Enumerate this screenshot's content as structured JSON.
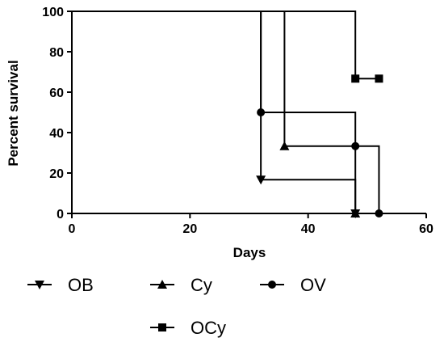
{
  "chart_data": {
    "type": "line",
    "step": true,
    "xlabel": "Days",
    "ylabel": "Percent survival",
    "xlim": [
      0,
      60
    ],
    "ylim": [
      0,
      100
    ],
    "x_ticks": [
      0,
      20,
      40,
      60
    ],
    "y_ticks": [
      0,
      20,
      40,
      60,
      80,
      100
    ],
    "x_tick_labels": [
      "0",
      "20",
      "40",
      "60"
    ],
    "y_tick_labels": [
      "0",
      "20",
      "40",
      "60",
      "80",
      "100"
    ],
    "grid": false,
    "legend_position": "bottom",
    "series": [
      {
        "name": "OB",
        "marker": "triangle-down",
        "steps": [
          [
            0,
            100
          ],
          [
            32,
            100
          ],
          [
            32,
            16.7
          ],
          [
            48,
            16.7
          ],
          [
            48,
            0
          ]
        ],
        "markers": [
          [
            32,
            16.7
          ],
          [
            48,
            0
          ]
        ]
      },
      {
        "name": "Cy",
        "marker": "triangle-up",
        "steps": [
          [
            0,
            100
          ],
          [
            36,
            100
          ],
          [
            36,
            33.3
          ],
          [
            48,
            33.3
          ],
          [
            48,
            0
          ]
        ],
        "markers": [
          [
            36,
            33.3
          ],
          [
            48,
            0
          ]
        ]
      },
      {
        "name": "OV",
        "marker": "circle",
        "steps": [
          [
            0,
            100
          ],
          [
            32,
            100
          ],
          [
            32,
            50
          ],
          [
            48,
            50
          ],
          [
            48,
            33.3
          ],
          [
            52,
            33.3
          ],
          [
            52,
            0
          ]
        ],
        "markers": [
          [
            32,
            50
          ],
          [
            48,
            33.3
          ],
          [
            52,
            0
          ]
        ]
      },
      {
        "name": "OCy",
        "marker": "square",
        "steps": [
          [
            0,
            100
          ],
          [
            48,
            100
          ],
          [
            48,
            66.7
          ],
          [
            52,
            66.7
          ]
        ],
        "markers": [
          [
            48,
            66.7
          ],
          [
            52,
            66.7
          ]
        ]
      }
    ]
  }
}
